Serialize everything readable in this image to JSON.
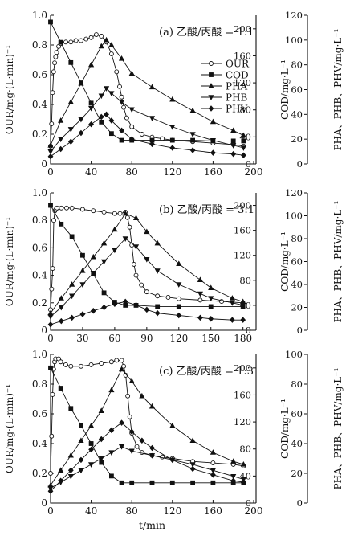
{
  "chart_data": [
    {
      "type": "line",
      "panel_label": "(a) 乙酸/丙酸 = 1:1",
      "xlabel": "",
      "ylabel_left": "OUR/mg·(L·min)⁻¹",
      "ylabel_mid": "COD/mg·L⁻¹",
      "ylabel_right": "PHA、PHB、PHV/mg·L⁻¹",
      "xlim": [
        0,
        200
      ],
      "x_ticks": [
        "0",
        "40",
        "80",
        "120",
        "160",
        "200"
      ],
      "ylim_left": [
        0,
        1.0
      ],
      "y_ticks_left": [
        "0",
        "0.2",
        "0.4",
        "0.6",
        "0.8",
        "1.0"
      ],
      "ylim_mid": [
        0,
        220
      ],
      "y_ticks_mid": [
        "0",
        "40",
        "80",
        "120",
        "160",
        "200"
      ],
      "ylim_right": [
        0,
        120
      ],
      "y_ticks_right": [
        "0",
        "20",
        "40",
        "60",
        "80",
        "100",
        "120"
      ],
      "legend_position": "right",
      "series": [
        {
          "name": "OUR",
          "axis": "left",
          "marker": "circle-open",
          "x": [
            0,
            1,
            2,
            3,
            4,
            5,
            6,
            8,
            10,
            15,
            20,
            25,
            30,
            35,
            40,
            45,
            50,
            55,
            60,
            65,
            68,
            70,
            72,
            75,
            80,
            90,
            100,
            110,
            120,
            140,
            160,
            180,
            190
          ],
          "y": [
            0.12,
            0.27,
            0.48,
            0.62,
            0.68,
            0.72,
            0.75,
            0.79,
            0.81,
            0.82,
            0.82,
            0.83,
            0.83,
            0.84,
            0.85,
            0.87,
            0.86,
            0.82,
            0.74,
            0.62,
            0.52,
            0.45,
            0.38,
            0.31,
            0.25,
            0.2,
            0.18,
            0.17,
            0.16,
            0.15,
            0.14,
            0.13,
            0.12
          ]
        },
        {
          "name": "COD",
          "axis": "mid",
          "marker": "square",
          "x": [
            0,
            10,
            20,
            30,
            40,
            50,
            60,
            70,
            80,
            100,
            120,
            140,
            160,
            180,
            190
          ],
          "y": [
            210,
            180,
            150,
            120,
            90,
            62,
            45,
            35,
            35,
            35,
            35,
            35,
            34,
            34,
            34
          ]
        },
        {
          "name": "PHA",
          "axis": "right",
          "marker": "triangle-up",
          "x": [
            0,
            10,
            20,
            30,
            40,
            50,
            55,
            60,
            70,
            80,
            100,
            120,
            140,
            160,
            180,
            190
          ],
          "y": [
            15,
            35,
            50,
            65,
            80,
            95,
            100,
            96,
            85,
            73,
            62,
            52,
            43,
            34,
            27,
            23
          ]
        },
        {
          "name": "PHB",
          "axis": "right",
          "marker": "triangle-down",
          "x": [
            0,
            10,
            20,
            30,
            40,
            50,
            55,
            60,
            70,
            80,
            100,
            120,
            140,
            160,
            180,
            190
          ],
          "y": [
            10,
            20,
            28,
            36,
            45,
            55,
            61,
            57,
            50,
            44,
            37,
            30,
            24,
            19,
            15,
            13
          ]
        },
        {
          "name": "PHV",
          "axis": "right",
          "marker": "diamond",
          "x": [
            0,
            10,
            20,
            30,
            40,
            50,
            55,
            60,
            70,
            80,
            100,
            120,
            140,
            160,
            180,
            190
          ],
          "y": [
            6,
            12,
            18,
            25,
            32,
            38,
            40,
            35,
            27,
            20,
            16,
            13,
            11,
            9,
            8,
            7
          ]
        }
      ]
    },
    {
      "type": "line",
      "panel_label": "(b) 乙酸/丙酸 = 3:1",
      "xlabel": "",
      "ylabel_left": "OUR/mg·(L·min)⁻¹",
      "ylabel_mid": "COD/mg·L⁻¹",
      "ylabel_right": "PHA、PHB、PHV/mg·L⁻¹",
      "xlim": [
        0,
        190
      ],
      "x_ticks": [
        "0",
        "30",
        "60",
        "90",
        "120",
        "150",
        "180"
      ],
      "ylim_left": [
        0,
        1.0
      ],
      "y_ticks_left": [
        "0",
        "0.2",
        "0.4",
        "0.6",
        "0.8",
        "1.0"
      ],
      "ylim_mid": [
        0,
        220
      ],
      "y_ticks_mid": [
        "0",
        "40",
        "80",
        "120",
        "160",
        "200"
      ],
      "ylim_right": [
        0,
        120
      ],
      "y_ticks_right": [
        "0",
        "20",
        "40",
        "60",
        "80",
        "100",
        "120"
      ],
      "series": [
        {
          "name": "OUR",
          "axis": "left",
          "marker": "circle-open",
          "x": [
            0,
            1,
            2,
            3,
            4,
            5,
            6,
            10,
            15,
            20,
            30,
            40,
            50,
            60,
            65,
            70,
            72,
            74,
            76,
            78,
            80,
            85,
            90,
            100,
            110,
            120,
            140,
            160,
            180
          ],
          "y": [
            0.15,
            0.3,
            0.45,
            0.8,
            0.87,
            0.88,
            0.89,
            0.89,
            0.89,
            0.89,
            0.88,
            0.87,
            0.86,
            0.85,
            0.85,
            0.86,
            0.82,
            0.75,
            0.62,
            0.48,
            0.4,
            0.33,
            0.28,
            0.25,
            0.24,
            0.23,
            0.22,
            0.21,
            0.2
          ]
        },
        {
          "name": "COD",
          "axis": "mid",
          "marker": "square",
          "x": [
            0,
            10,
            20,
            30,
            40,
            50,
            60,
            70,
            80,
            100,
            120,
            150,
            180
          ],
          "y": [
            200,
            170,
            150,
            120,
            90,
            60,
            45,
            40,
            40,
            38,
            38,
            38,
            38
          ]
        },
        {
          "name": "PHA",
          "axis": "right",
          "marker": "triangle-up",
          "x": [
            0,
            10,
            20,
            30,
            40,
            50,
            60,
            70,
            80,
            90,
            100,
            120,
            140,
            150,
            170,
            180
          ],
          "y": [
            15,
            28,
            40,
            52,
            64,
            76,
            88,
            102,
            98,
            86,
            76,
            58,
            44,
            37,
            28,
            25
          ]
        },
        {
          "name": "PHB",
          "axis": "right",
          "marker": "triangle-down",
          "x": [
            0,
            10,
            20,
            30,
            40,
            50,
            60,
            70,
            80,
            90,
            100,
            120,
            140,
            150,
            170,
            180
          ],
          "y": [
            12,
            20,
            30,
            40,
            50,
            60,
            70,
            80,
            73,
            62,
            52,
            40,
            32,
            28,
            24,
            22
          ]
        },
        {
          "name": "PHV",
          "axis": "right",
          "marker": "diamond",
          "x": [
            0,
            10,
            20,
            30,
            40,
            50,
            60,
            70,
            80,
            90,
            100,
            120,
            140,
            150,
            170,
            180
          ],
          "y": [
            5,
            8,
            11,
            14,
            17,
            20,
            23,
            25,
            22,
            18,
            15,
            13,
            11,
            10,
            9,
            9
          ]
        }
      ]
    },
    {
      "type": "line",
      "panel_label": "(c) 乙酸/丙酸 = 1:3",
      "xlabel": "t/min",
      "ylabel_left": "OUR/mg·(L·min)⁻¹",
      "ylabel_mid": "COD/mg·L⁻¹",
      "ylabel_right": "PHA、PHB、PHV/mg·L⁻¹",
      "xlim": [
        0,
        200
      ],
      "x_ticks": [
        "0",
        "40",
        "80",
        "120",
        "160",
        "200"
      ],
      "ylim_left": [
        0,
        1.0
      ],
      "y_ticks_left": [
        "0",
        "0.2",
        "0.4",
        "0.6",
        "0.8",
        "1.0"
      ],
      "ylim_mid": [
        0,
        220
      ],
      "y_ticks_mid": [
        "0",
        "40",
        "80",
        "120",
        "160",
        "200"
      ],
      "ylim_right": [
        0,
        100
      ],
      "y_ticks_right": [
        "0",
        "20",
        "40",
        "60",
        "80",
        "100"
      ],
      "series": [
        {
          "name": "OUR",
          "axis": "left",
          "marker": "circle-open",
          "x": [
            0,
            1,
            2,
            3,
            4,
            5,
            8,
            10,
            15,
            20,
            30,
            40,
            50,
            60,
            65,
            70,
            72,
            74,
            76,
            78,
            80,
            85,
            90,
            100,
            110,
            120,
            140,
            160,
            180,
            190
          ],
          "y": [
            0.2,
            0.45,
            0.73,
            0.9,
            0.95,
            0.97,
            0.97,
            0.95,
            0.93,
            0.92,
            0.92,
            0.93,
            0.94,
            0.95,
            0.96,
            0.96,
            0.92,
            0.86,
            0.72,
            0.58,
            0.47,
            0.38,
            0.34,
            0.32,
            0.31,
            0.3,
            0.28,
            0.27,
            0.26,
            0.25
          ]
        },
        {
          "name": "COD",
          "axis": "mid",
          "marker": "square",
          "x": [
            0,
            10,
            20,
            30,
            40,
            50,
            60,
            70,
            80,
            100,
            120,
            140,
            160,
            180,
            190
          ],
          "y": [
            200,
            170,
            140,
            115,
            88,
            60,
            40,
            30,
            30,
            30,
            30,
            30,
            30,
            30,
            30
          ]
        },
        {
          "name": "PHA",
          "axis": "right",
          "marker": "triangle-up",
          "x": [
            0,
            10,
            20,
            30,
            40,
            50,
            60,
            70,
            80,
            90,
            100,
            120,
            140,
            160,
            180,
            190
          ],
          "y": [
            12,
            22,
            32,
            42,
            52,
            62,
            76,
            90,
            82,
            72,
            65,
            52,
            42,
            34,
            28,
            26
          ]
        },
        {
          "name": "PHB",
          "axis": "right",
          "marker": "triangle-down",
          "x": [
            0,
            10,
            20,
            30,
            40,
            50,
            60,
            70,
            80,
            100,
            120,
            140,
            160,
            180,
            190
          ],
          "y": [
            10,
            14,
            18,
            22,
            26,
            30,
            34,
            38,
            35,
            32,
            29,
            26,
            22,
            18,
            16
          ]
        },
        {
          "name": "PHV",
          "axis": "right",
          "marker": "diamond",
          "x": [
            0,
            10,
            20,
            30,
            40,
            50,
            60,
            70,
            80,
            90,
            100,
            120,
            140,
            160,
            180,
            190
          ],
          "y": [
            8,
            15,
            22,
            29,
            36,
            43,
            49,
            54,
            48,
            42,
            37,
            29,
            23,
            19,
            15,
            14
          ]
        }
      ]
    }
  ]
}
